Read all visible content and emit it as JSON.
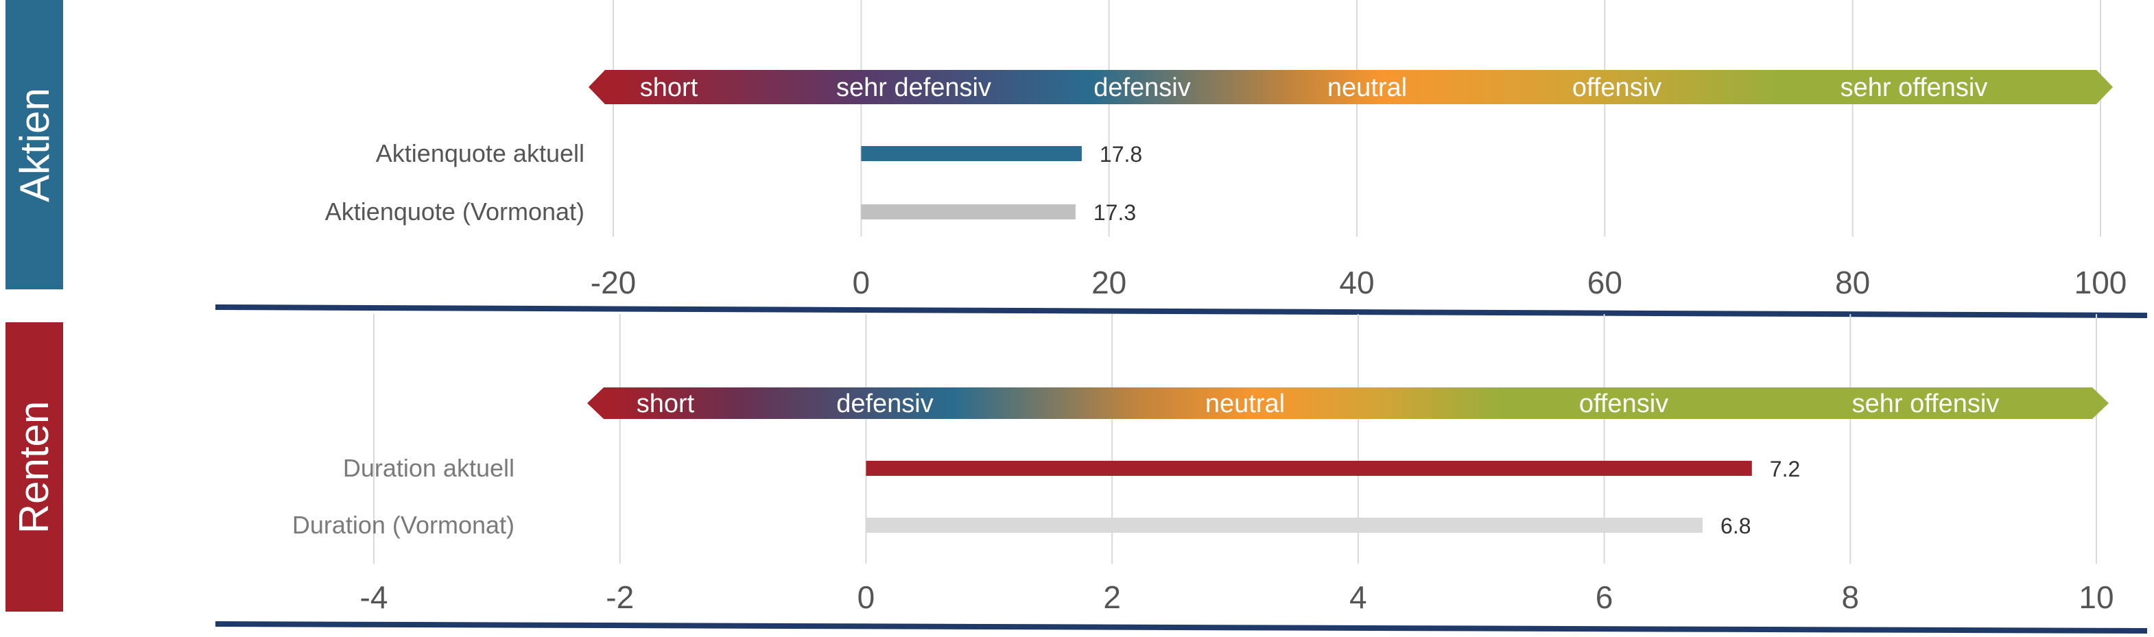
{
  "panels_labels": {
    "aktien": "Aktien",
    "renten": "Renten"
  },
  "colors": {
    "aktien_tab": "#2a6c8f",
    "renten_tab": "#a4202b",
    "bar_aktien_current": "#2a6c8f",
    "bar_renten_current": "#a4202b",
    "bar_aktien_previous": "#c0c0c0",
    "bar_renten_previous": "#d9d9d9",
    "axis_line": "#1f3a68",
    "gradient": [
      "#a4202b",
      "#5a3a6a",
      "#2a6c8f",
      "#f7962f",
      "#9aae3c"
    ]
  },
  "chart_data": [
    {
      "type": "bar",
      "orientation": "horizontal",
      "panel": "Aktien",
      "band_labels": [
        "short",
        "sehr defensiv",
        "defensiv",
        "neutral",
        "offensiv",
        "sehr offensiv"
      ],
      "categories": [
        "Aktienquote aktuell",
        "Aktienquote (Vormonat)"
      ],
      "values": [
        17.8,
        17.3
      ],
      "data_labels": [
        "17.8",
        "17.3"
      ],
      "xlim": [
        -20,
        100
      ],
      "xticks": [
        -20,
        0,
        20,
        40,
        60,
        80,
        100
      ],
      "tick_labels": [
        "-20",
        "0",
        "20",
        "40",
        "60",
        "80",
        "100"
      ],
      "grid": true
    },
    {
      "type": "bar",
      "orientation": "horizontal",
      "panel": "Renten",
      "band_labels": [
        "short",
        "defensiv",
        "neutral",
        "offensiv",
        "sehr offensiv"
      ],
      "categories": [
        "Duration aktuell",
        "Duration (Vormonat)"
      ],
      "values": [
        7.2,
        6.8
      ],
      "data_labels": [
        "7.2",
        "6.8"
      ],
      "xlim": [
        -4,
        10
      ],
      "xticks": [
        -4,
        -2,
        0,
        2,
        4,
        6,
        8,
        10
      ],
      "tick_labels": [
        "-4",
        "-2",
        "0",
        "2",
        "4",
        "6",
        "8",
        "10"
      ],
      "grid": true
    }
  ]
}
